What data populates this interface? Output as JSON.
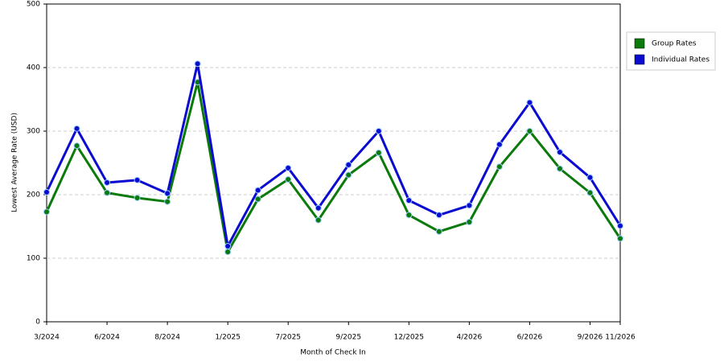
{
  "chart_data": {
    "type": "line",
    "x_label": "Month of Check In",
    "y_label": "Lowest Average Rate (USD)",
    "categories": [
      "3/2024",
      null,
      "6/2024",
      null,
      "8/2024",
      null,
      "1/2025",
      null,
      "7/2025",
      null,
      "9/2025",
      null,
      "12/2025",
      null,
      "4/2026",
      null,
      "6/2026",
      null,
      "9/2026",
      "11/2026"
    ],
    "series": [
      {
        "name": "Group Rates",
        "color": "#0a7a0a",
        "values": [
          173,
          277,
          203,
          195,
          189,
          377,
          110,
          193,
          224,
          160,
          231,
          266,
          168,
          142,
          157,
          244,
          300,
          241,
          203,
          131
        ]
      },
      {
        "name": "Individual Rates",
        "color": "#0a0ad0",
        "values": [
          204,
          304,
          219,
          223,
          202,
          406,
          119,
          207,
          242,
          179,
          247,
          300,
          191,
          168,
          183,
          279,
          345,
          267,
          227,
          151
        ]
      }
    ],
    "ylim": [
      0,
      500
    ],
    "yticks": [
      0,
      100,
      200,
      300,
      400,
      500
    ],
    "grid": true,
    "legend": "right"
  }
}
